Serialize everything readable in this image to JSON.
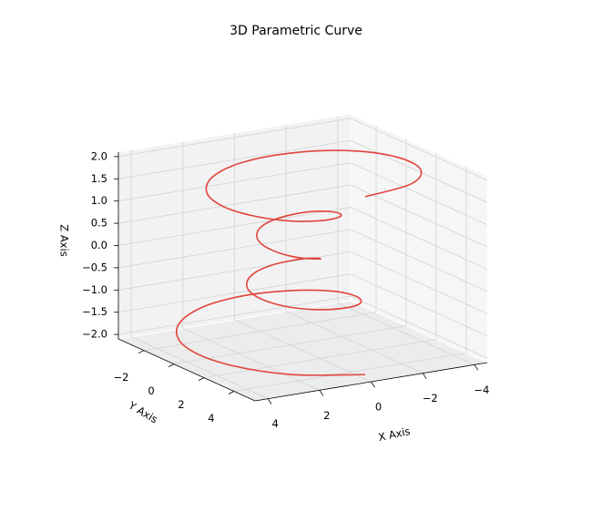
{
  "chart_data": {
    "type": "line3d",
    "title": "3D Parametric Curve",
    "xlabel": "X Axis",
    "ylabel": "Y Axis",
    "zlabel": "Z Axis",
    "color": "#e0443c",
    "grid": true,
    "x": [
      0,
      2.34,
      3.78,
      4.06,
      3.27,
      1.75,
      0,
      -1.5,
      -2.41,
      -2.56,
      -2.04,
      -1.09,
      0,
      0.92,
      1.47,
      1.56,
      1.25,
      0.67,
      0,
      -0.59,
      -0.96,
      -1.06,
      -0.89,
      -0.5,
      0,
      0.5,
      0.89,
      1.06,
      0.96,
      0.59,
      0,
      -0.67,
      -1.25,
      -1.56,
      -1.47,
      -0.92,
      0,
      1.09,
      2.04,
      2.56,
      2.41,
      1.5,
      0,
      -1.75,
      -3.27,
      -4.06,
      -3.78,
      -2.34,
      0
    ],
    "y": [
      5,
      4.05,
      2.18,
      0,
      -1.89,
      -3.04,
      -3.25,
      -2.6,
      -1.39,
      0,
      1.18,
      1.88,
      2,
      1.59,
      0.85,
      0,
      -0.72,
      -1.16,
      -1.25,
      -1.02,
      -0.56,
      0,
      0.51,
      0.87,
      1,
      0.87,
      0.51,
      0,
      -0.56,
      -1.02,
      -1.25,
      -1.16,
      -0.72,
      0,
      0.85,
      1.59,
      2,
      1.88,
      1.18,
      0,
      -1.39,
      -2.6,
      -3.25,
      -3.04,
      -1.89,
      0,
      2.18,
      4.05,
      5
    ],
    "z": [
      -2,
      -1.92,
      -1.83,
      -1.75,
      -1.67,
      -1.58,
      -1.5,
      -1.42,
      -1.33,
      -1.25,
      -1.17,
      -1.08,
      -1,
      -0.92,
      -0.83,
      -0.75,
      -0.67,
      -0.58,
      -0.5,
      -0.42,
      -0.33,
      -0.25,
      -0.17,
      -0.08,
      0,
      0.08,
      0.17,
      0.25,
      0.33,
      0.42,
      0.5,
      0.58,
      0.67,
      0.75,
      0.83,
      0.92,
      1,
      1.08,
      1.17,
      1.25,
      1.33,
      1.42,
      1.5,
      1.58,
      1.67,
      1.75,
      1.83,
      1.92,
      2
    ],
    "xlim": [
      -4.5,
      4.5
    ],
    "ylim": [
      -3.7,
      5.4
    ],
    "zlim": [
      -2.1,
      2.1
    ],
    "xticks": [
      {
        "value": -4,
        "label": "−4"
      },
      {
        "value": -2,
        "label": "−2"
      },
      0,
      2,
      4
    ],
    "yticks": [
      {
        "value": -2,
        "label": "−2"
      },
      0,
      2,
      4
    ],
    "zticks": [
      {
        "value": -2,
        "label": "−2.0"
      },
      {
        "value": -1.5,
        "label": "−1.5"
      },
      {
        "value": -1,
        "label": "−1.0"
      },
      {
        "value": -0.5,
        "label": "−0.5"
      },
      {
        "value": 0,
        "label": "0.0"
      },
      {
        "value": 0.5,
        "label": "0.5"
      },
      {
        "value": 1,
        "label": "1.0"
      },
      {
        "value": 1.5,
        "label": "1.5"
      },
      {
        "value": 2,
        "label": "2.0"
      }
    ]
  }
}
